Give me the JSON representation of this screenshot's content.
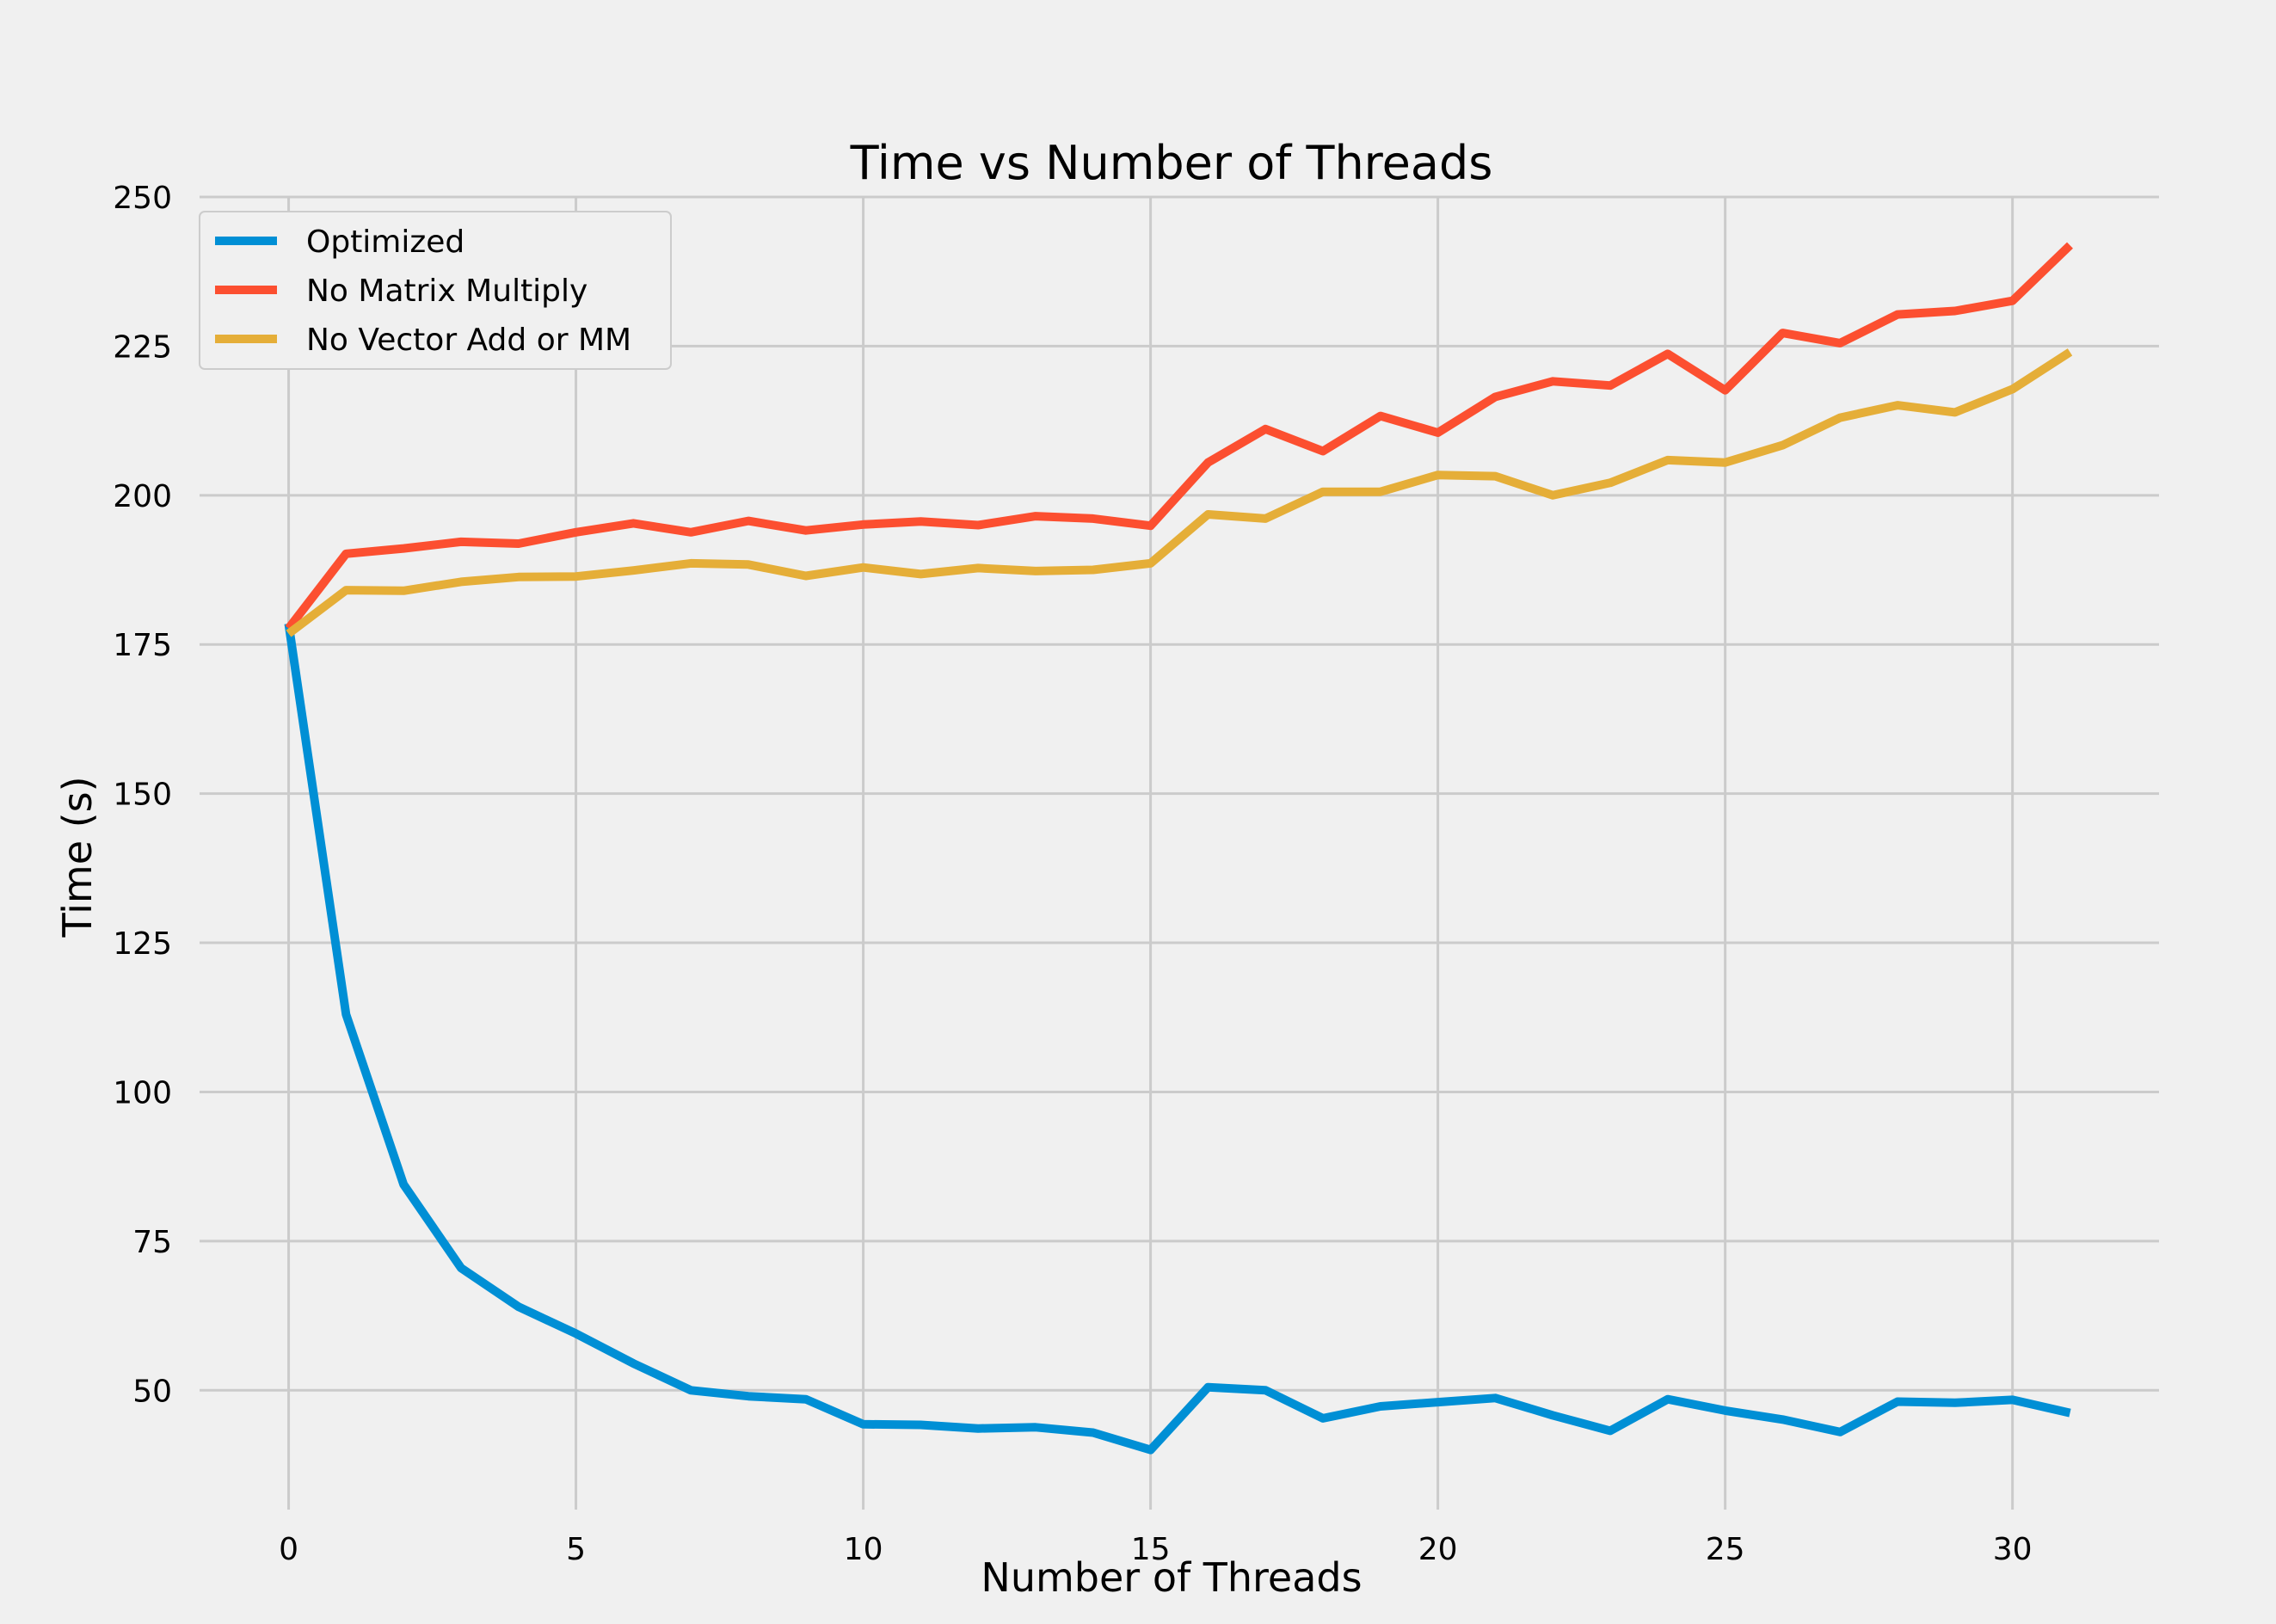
{
  "chart_data": {
    "type": "line",
    "title": "Time vs Number of Threads",
    "xlabel": "Number of Threads",
    "ylabel": "Time (s)",
    "xlim": [
      -1.55,
      32.55
    ],
    "ylim": [
      30,
      250
    ],
    "xticks": [
      0,
      5,
      10,
      15,
      20,
      25,
      30
    ],
    "yticks": [
      50,
      75,
      100,
      125,
      150,
      175,
      200,
      225,
      250
    ],
    "grid": true,
    "legend_position": "top-left",
    "x": [
      0,
      1,
      2,
      3,
      4,
      5,
      6,
      7,
      8,
      9,
      10,
      11,
      12,
      13,
      14,
      15,
      16,
      17,
      18,
      19,
      20,
      21,
      22,
      23,
      24,
      25,
      26,
      27,
      28,
      29,
      30,
      31
    ],
    "series": [
      {
        "name": "Optimized",
        "color": "#008fd5",
        "values": [
          178.5,
          113,
          84.5,
          70.5,
          64,
          59.5,
          54.5,
          50,
          49,
          48.5,
          44.3,
          44.2,
          43.6,
          43.8,
          42.9,
          40,
          50.5,
          50,
          45.3,
          47.3,
          48,
          48.7,
          45.8,
          43.2,
          48.5,
          46.6,
          45.1,
          43,
          48.1,
          47.9,
          48.4,
          46.2
        ]
      },
      {
        "name": "No Matrix Multiply",
        "color": "#fc4f30",
        "values": [
          177.7,
          190.2,
          191.1,
          192.2,
          191.9,
          193.8,
          195.3,
          193.8,
          195.7,
          194.1,
          195.1,
          195.6,
          195,
          196.5,
          196.1,
          194.9,
          205.5,
          211.1,
          207.4,
          213.3,
          210.5,
          216.5,
          219.1,
          218.4,
          223.7,
          217.6,
          227.2,
          225.5,
          230.3,
          230.9,
          232.6,
          241.9
        ]
      },
      {
        "name": "No Vector Add or MM",
        "color": "#e5ae38",
        "values": [
          176.8,
          184.1,
          184,
          185.5,
          186.3,
          186.4,
          187.4,
          188.6,
          188.4,
          186.5,
          187.9,
          186.8,
          187.8,
          187.3,
          187.5,
          188.6,
          196.8,
          196.1,
          200.6,
          200.6,
          203.4,
          203.2,
          200,
          202.1,
          205.9,
          205.5,
          208.4,
          213,
          215.1,
          213.9,
          217.8,
          224
        ]
      }
    ]
  }
}
